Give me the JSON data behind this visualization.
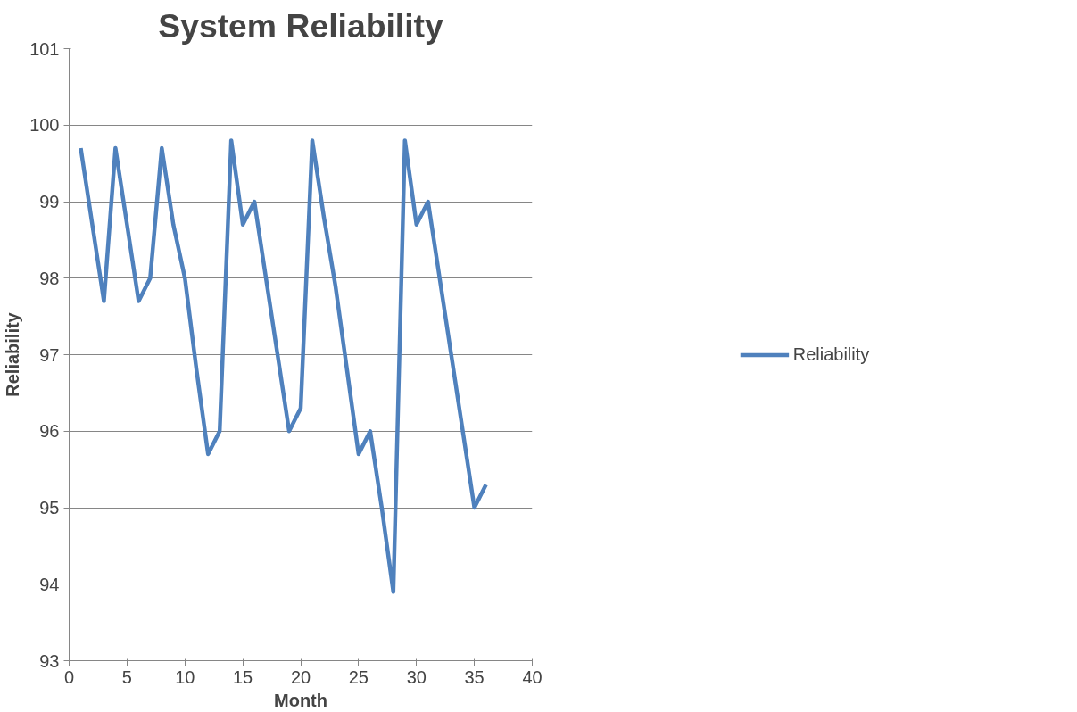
{
  "chart_data": {
    "type": "line",
    "title": "System Reliability",
    "xlabel": "Month",
    "ylabel": "Reliability",
    "x": [
      1,
      2,
      3,
      4,
      5,
      6,
      7,
      8,
      9,
      10,
      11,
      12,
      13,
      14,
      15,
      16,
      17,
      18,
      19,
      20,
      21,
      22,
      23,
      24,
      25,
      26,
      27,
      28,
      29,
      30,
      31,
      32,
      33,
      34,
      35,
      36
    ],
    "series": [
      {
        "name": "Reliability",
        "color": "#4f81bd",
        "values": [
          99.7,
          98.7,
          97.7,
          99.7,
          98.7,
          97.7,
          98.0,
          99.7,
          98.7,
          98.0,
          96.8,
          95.7,
          96.0,
          99.8,
          98.7,
          99.0,
          98.0,
          97.0,
          96.0,
          96.3,
          99.8,
          98.8,
          97.9,
          96.8,
          95.7,
          96.0,
          95.0,
          93.9,
          99.8,
          98.7,
          99.0,
          98.0,
          97.0,
          96.0,
          95.0,
          95.3
        ]
      }
    ],
    "xlim": [
      0,
      40
    ],
    "xticks": [
      0,
      5,
      10,
      15,
      20,
      25,
      30,
      35,
      40
    ],
    "ylim": [
      93,
      101
    ],
    "yticks": [
      93,
      94,
      95,
      96,
      97,
      98,
      99,
      100,
      101
    ],
    "grid": "y",
    "legend": "right",
    "marker": "none",
    "line_style": "solid"
  }
}
